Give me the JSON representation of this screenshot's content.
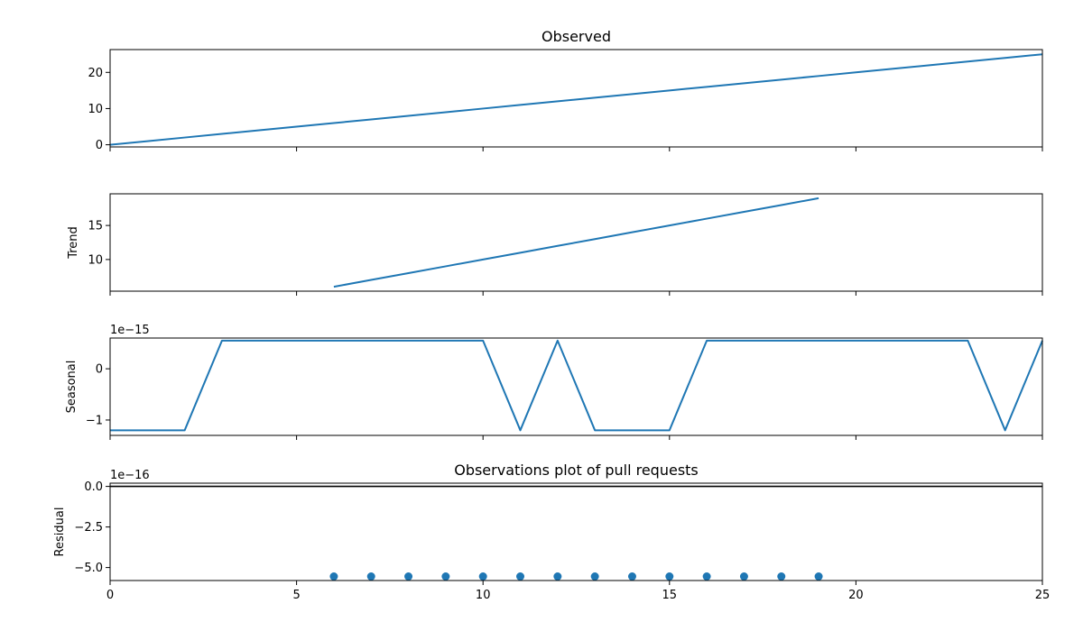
{
  "chart_data": [
    {
      "type": "line",
      "id": "observed",
      "title": "Observed",
      "ylabel": "",
      "offset_text": "",
      "x": [
        0,
        1,
        2,
        3,
        4,
        5,
        6,
        7,
        8,
        9,
        10,
        11,
        12,
        13,
        14,
        15,
        16,
        17,
        18,
        19,
        20,
        21,
        22,
        23,
        24,
        25
      ],
      "series": [
        {
          "values": [
            0,
            1,
            2,
            3,
            4,
            5,
            6,
            7,
            8,
            9,
            10,
            11,
            12,
            13,
            14,
            15,
            16,
            17,
            18,
            19,
            20,
            21,
            22,
            23,
            24,
            25
          ]
        }
      ],
      "xlim": [
        0,
        25
      ],
      "ylim": [
        -0.6,
        26.3
      ],
      "yticks": [
        0,
        10,
        20
      ],
      "xticks": [
        0,
        5,
        10,
        15,
        20,
        25
      ],
      "show_x_tick_labels": false
    },
    {
      "type": "line",
      "id": "trend",
      "title": "",
      "ylabel": "Trend",
      "offset_text": "",
      "x": [
        6,
        7,
        8,
        9,
        10,
        11,
        12,
        13,
        14,
        15,
        16,
        17,
        18,
        19
      ],
      "series": [
        {
          "values": [
            6,
            7,
            8,
            9,
            10,
            11,
            12,
            13,
            14,
            15,
            16,
            17,
            18,
            19
          ]
        }
      ],
      "xlim": [
        0,
        25
      ],
      "ylim": [
        5.35,
        19.65
      ],
      "yticks": [
        10,
        15
      ],
      "xticks": [
        0,
        5,
        10,
        15,
        20,
        25
      ],
      "show_x_tick_labels": false
    },
    {
      "type": "line",
      "id": "seasonal",
      "title": "",
      "ylabel": "Seasonal",
      "offset_text": "1e−15",
      "x": [
        0,
        1,
        2,
        3,
        4,
        5,
        6,
        7,
        8,
        9,
        10,
        11,
        12,
        13,
        14,
        15,
        16,
        17,
        18,
        19,
        20,
        21,
        22,
        23,
        24,
        25
      ],
      "series": [
        {
          "values": [
            -1.2,
            -1.2,
            -1.2,
            0.55,
            0.55,
            0.55,
            0.55,
            0.55,
            0.55,
            0.55,
            0.55,
            -1.2,
            0.55,
            -1.2,
            -1.2,
            -1.2,
            0.55,
            0.55,
            0.55,
            0.55,
            0.55,
            0.55,
            0.55,
            0.55,
            -1.2,
            0.55
          ]
        }
      ],
      "xlim": [
        0,
        25
      ],
      "ylim": [
        -1.3,
        0.6
      ],
      "yticks": [
        0,
        -1
      ],
      "ytick_labels": [
        "0",
        "−1"
      ],
      "xticks": [
        0,
        5,
        10,
        15,
        20,
        25
      ],
      "show_x_tick_labels": false
    },
    {
      "type": "scatter",
      "id": "residual",
      "title": "Observations plot of pull requests",
      "ylabel": "Residual",
      "offset_text": "1e−16",
      "x": [
        6,
        7,
        8,
        9,
        10,
        11,
        12,
        13,
        14,
        15,
        16,
        17,
        18,
        19
      ],
      "series": [
        {
          "values": [
            -5.55,
            -5.55,
            -5.55,
            -5.55,
            -5.55,
            -5.55,
            -5.55,
            -5.55,
            -5.55,
            -5.55,
            -5.55,
            -5.55,
            -5.55,
            -5.55
          ]
        }
      ],
      "hline": 0,
      "xlim": [
        0,
        25
      ],
      "ylim": [
        -5.8,
        0.2
      ],
      "yticks": [
        0,
        -2.5,
        -5
      ],
      "ytick_labels": [
        "0.0",
        "−2.5",
        "−5.0"
      ],
      "xticks": [
        0,
        5,
        10,
        15,
        20,
        25
      ],
      "xtick_labels": [
        "0",
        "5",
        "10",
        "15",
        "20",
        "25"
      ],
      "show_x_tick_labels": true
    }
  ],
  "colors": {
    "line": "#1f77b4",
    "marker": "#1f77b4",
    "axis": "#000000"
  }
}
